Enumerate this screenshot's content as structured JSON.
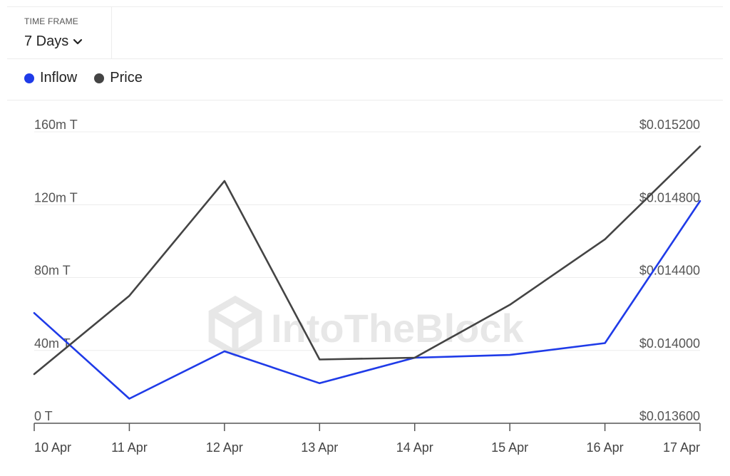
{
  "timeframe": {
    "label": "TIME FRAME",
    "value": "7 Days"
  },
  "legend": [
    {
      "name": "Inflow",
      "color": "#1f3be8"
    },
    {
      "name": "Price",
      "color": "#444444"
    }
  ],
  "watermark": "IntoTheBlock",
  "chart_data": {
    "type": "line",
    "title": "",
    "xlabel": "",
    "ylabel": "",
    "categories": [
      "10 Apr",
      "11 Apr",
      "12 Apr",
      "13 Apr",
      "14 Apr",
      "15 Apr",
      "16 Apr",
      "17 Apr"
    ],
    "left_axis": {
      "ticks": [
        0,
        40,
        80,
        120,
        160
      ],
      "tick_labels": [
        "0 T",
        "40m T",
        "80m T",
        "120m T",
        "160m T"
      ],
      "ylim": [
        0,
        160
      ]
    },
    "right_axis": {
      "ticks": [
        0.0136,
        0.014,
        0.0144,
        0.0148,
        0.0152
      ],
      "tick_labels": [
        "$0.013600",
        "$0.014000",
        "$0.014400",
        "$0.014800",
        "$0.015200"
      ],
      "ylim": [
        0.0136,
        0.0152
      ]
    },
    "grid": true,
    "legend_position": "top-left",
    "series": [
      {
        "name": "Inflow",
        "axis": "left",
        "unit": "m T",
        "color": "#1f3be8",
        "values": [
          60.5,
          13.5,
          39.5,
          22,
          36,
          37.5,
          44,
          122
        ]
      },
      {
        "name": "Price",
        "axis": "right",
        "unit": "$",
        "color": "#444444",
        "values": [
          0.01387,
          0.0143,
          0.01493,
          0.01395,
          0.01396,
          0.01425,
          0.01461,
          0.01512
        ]
      }
    ]
  }
}
